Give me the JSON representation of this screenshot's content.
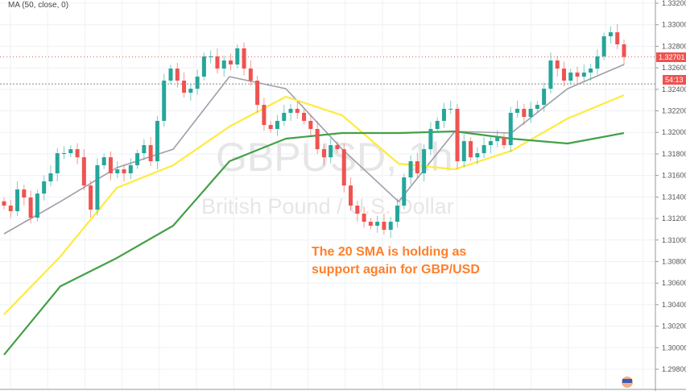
{
  "title": "GBPUSD, 1h",
  "subtitle": "British Pound / U.S. Dollar",
  "legend": "MA (50, close, 0)",
  "annotation": {
    "line1": "The 20 SMA is holding as",
    "line2": "support again for GBP/USD",
    "color": "#ff7f2a"
  },
  "last_price_label": "1.32701",
  "countdown_label": "54:13",
  "colors": {
    "up": "#26a69a",
    "down": "#ef5350",
    "sma20": "#9e9ea8",
    "sma50": "#ffeb3b",
    "sma100": "#43a047"
  },
  "chart_data": {
    "type": "candlestick",
    "title": "GBPUSD, 1h",
    "ylim": [
      1.2975,
      1.3323
    ],
    "y_ticks": [
      "1.33200",
      "1.33000",
      "1.32800",
      "1.32600",
      "1.32400",
      "1.32200",
      "1.32000",
      "1.31800",
      "1.31600",
      "1.31400",
      "1.31200",
      "1.31000",
      "1.30800",
      "1.30600",
      "1.30400",
      "1.30200",
      "1.30000",
      "1.29800"
    ],
    "grid": true,
    "closes": [
      1.3132,
      1.31268,
      1.3147,
      1.31395,
      1.31208,
      1.31432,
      1.31545,
      1.3162,
      1.31807,
      1.31807,
      1.31844,
      1.31769,
      1.31507,
      1.31283,
      1.31695,
      1.31769,
      1.3162,
      1.31657,
      1.3162,
      1.31695,
      1.31807,
      1.31882,
      1.31732,
      1.32107,
      1.32481,
      1.32593,
      1.32481,
      1.32369,
      1.32406,
      1.32518,
      1.32706,
      1.32706,
      1.32593,
      1.32668,
      1.32631,
      1.32781,
      1.32593,
      1.32481,
      1.32256,
      1.32069,
      1.32032,
      1.32107,
      1.32182,
      1.32219,
      1.32182,
      1.32107,
      1.32032,
      1.31844,
      1.31769,
      1.31882,
      1.31844,
      1.31507,
      1.3132,
      1.31245,
      1.3117,
      1.31133,
      1.3117,
      1.31095,
      1.3117,
      1.3132,
      1.31582,
      1.31732,
      1.3162,
      1.31844,
      1.32032,
      1.32107,
      1.32219,
      1.32219,
      1.31732,
      1.31919,
      1.31769,
      1.31807,
      1.31882,
      1.31919,
      1.31957,
      1.31882,
      1.32182,
      1.32219,
      1.32144,
      1.32219,
      1.32256,
      1.32406,
      1.32668,
      1.32593,
      1.32481,
      1.32556,
      1.32518,
      1.32556,
      1.32593,
      1.32706,
      1.32893,
      1.3293,
      1.32818,
      1.32701
    ],
    "series": [
      {
        "name": "",
        "color": "#9e9ea8",
        "values": [
          1.31058,
          1.31357,
          1.31672,
          1.31844,
          1.32518,
          1.32406,
          1.31844,
          1.31357,
          1.32009,
          1.31994,
          1.32406,
          1.32631
        ]
      },
      {
        "name": "",
        "color": "#ffeb3b",
        "values": [
          1.30309,
          1.30848,
          1.31485,
          1.31695,
          1.32054,
          1.32331,
          1.32159,
          1.3171,
          1.31657,
          1.31829,
          1.32129,
          1.32346
        ]
      },
      {
        "name": "",
        "color": "#43a047",
        "values": [
          1.29934,
          1.30571,
          1.30833,
          1.31133,
          1.31732,
          1.31942,
          1.31994,
          1.31994,
          1.32009,
          1.31942,
          1.31897,
          1.31994
        ]
      }
    ],
    "last_price": 1.32701,
    "reference_price": 1.3245
  }
}
